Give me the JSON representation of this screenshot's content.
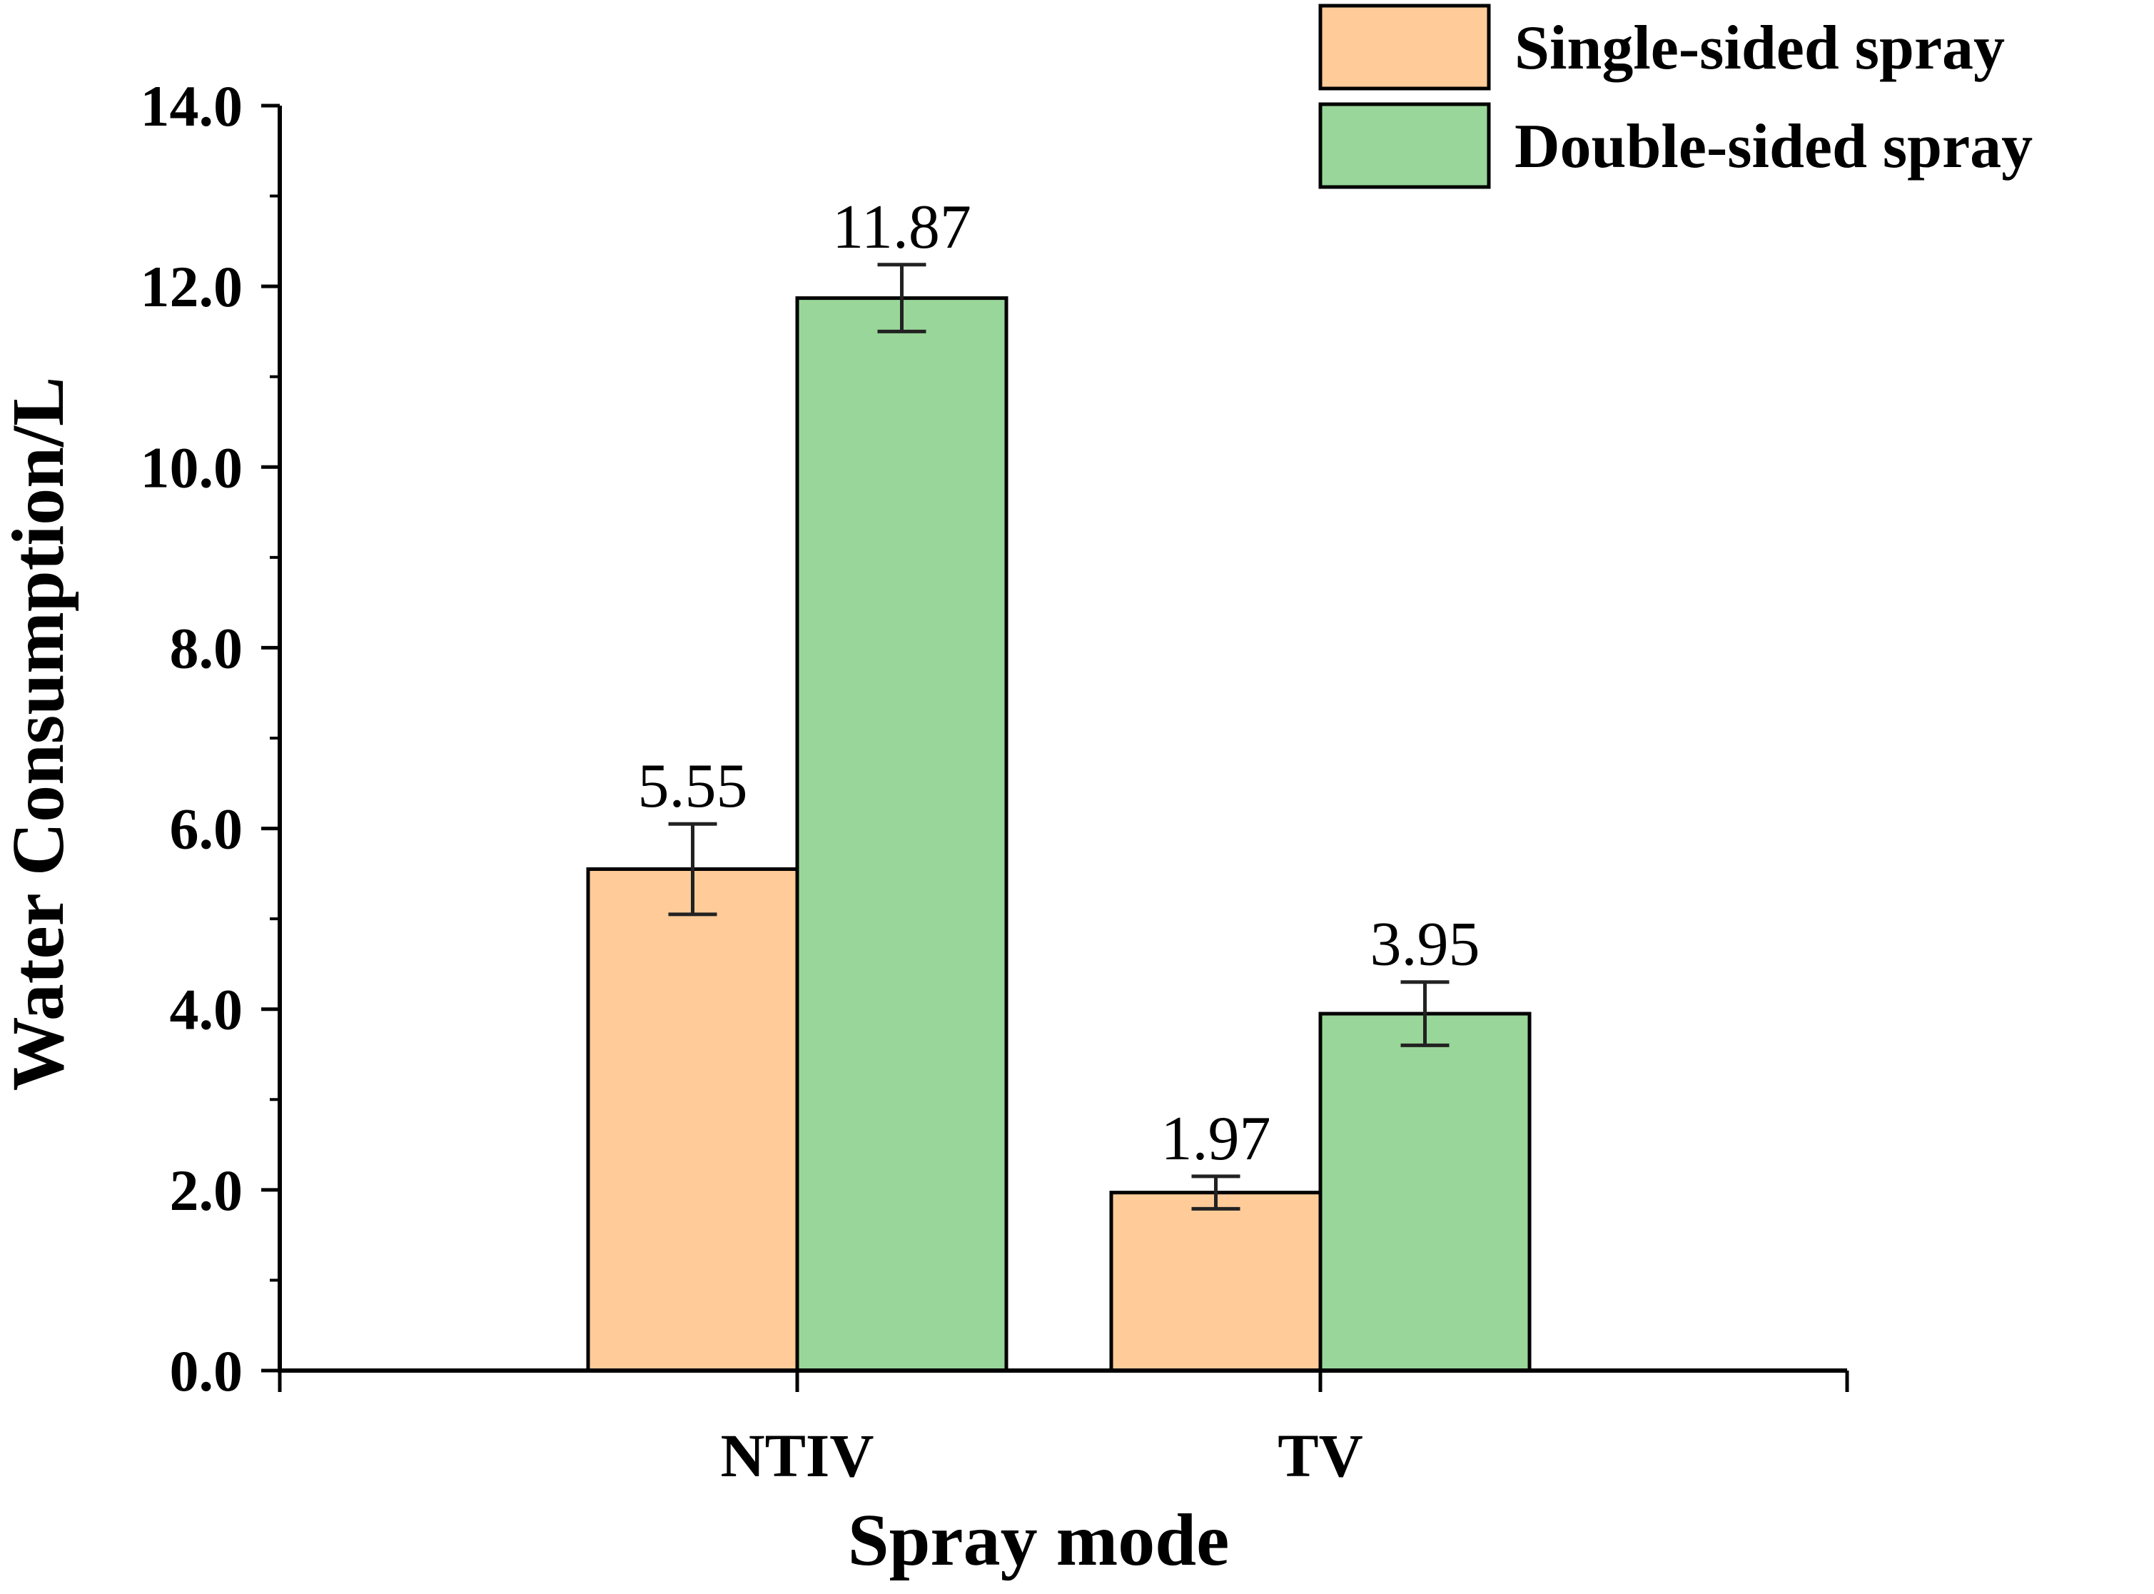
{
  "chart_data": {
    "type": "bar",
    "categories": [
      "NTIV",
      "TV"
    ],
    "series": [
      {
        "name": "Single-sided spray",
        "color": "#FFCC99",
        "values": [
          5.55,
          1.97
        ],
        "errors": [
          0.5,
          0.18
        ],
        "value_labels": [
          "5.55",
          "1.97"
        ]
      },
      {
        "name": "Double-sided spray",
        "color": "#99D699",
        "values": [
          11.87,
          3.95
        ],
        "errors": [
          0.37,
          0.35
        ],
        "value_labels": [
          "11.87",
          "3.95"
        ]
      }
    ],
    "xlabel": "Spray mode",
    "ylabel": "Water Consumption/L",
    "ylim": [
      0,
      14
    ],
    "yticks": [
      0,
      2,
      4,
      6,
      8,
      10,
      12,
      14
    ],
    "ytick_labels": [
      "0.0",
      "2.0",
      "4.0",
      "6.0",
      "8.0",
      "10.0",
      "12.0",
      "14.0"
    ],
    "grid": false,
    "legend_position": "top-right",
    "error_bars": true
  }
}
